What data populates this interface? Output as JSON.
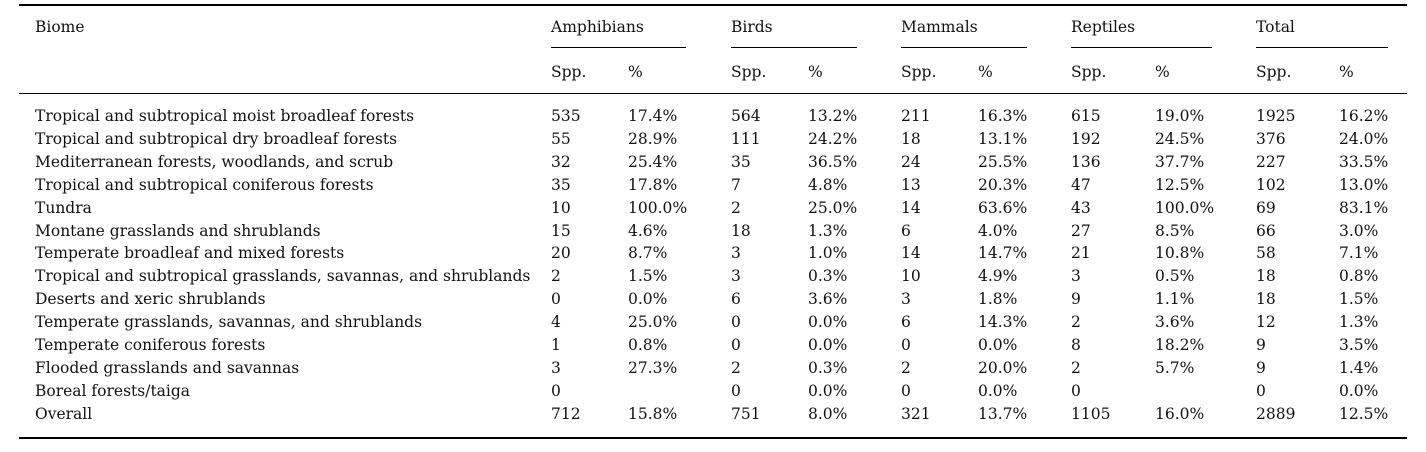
{
  "headers": {
    "biome": "Biome",
    "groups": [
      "Amphibians",
      "Birds",
      "Mammals",
      "Reptiles",
      "Total"
    ],
    "sub_spp": "Spp.",
    "sub_pct": "%"
  },
  "rows": [
    {
      "biome": "Tropical and subtropical moist broadleaf forests",
      "vals": [
        "535",
        "17.4%",
        "564",
        "13.2%",
        "211",
        "16.3%",
        "615",
        "19.0%",
        "1925",
        "16.2%"
      ]
    },
    {
      "biome": "Tropical and subtropical dry broadleaf forests",
      "vals": [
        "55",
        "28.9%",
        "111",
        "24.2%",
        "18",
        "13.1%",
        "192",
        "24.5%",
        "376",
        "24.0%"
      ]
    },
    {
      "biome": "Mediterranean forests, woodlands, and scrub",
      "vals": [
        "32",
        "25.4%",
        "35",
        "36.5%",
        "24",
        "25.5%",
        "136",
        "37.7%",
        "227",
        "33.5%"
      ]
    },
    {
      "biome": "Tropical and subtropical coniferous forests",
      "vals": [
        "35",
        "17.8%",
        "7",
        "4.8%",
        "13",
        "20.3%",
        "47",
        "12.5%",
        "102",
        "13.0%"
      ]
    },
    {
      "biome": "Tundra",
      "vals": [
        "10",
        "100.0%",
        "2",
        "25.0%",
        "14",
        "63.6%",
        "43",
        "100.0%",
        "69",
        "83.1%"
      ]
    },
    {
      "biome": "Montane grasslands and shrublands",
      "vals": [
        "15",
        "4.6%",
        "18",
        "1.3%",
        "6",
        "4.0%",
        "27",
        "8.5%",
        "66",
        "3.0%"
      ]
    },
    {
      "biome": "Temperate broadleaf and mixed forests",
      "vals": [
        "20",
        "8.7%",
        "3",
        "1.0%",
        "14",
        "14.7%",
        "21",
        "10.8%",
        "58",
        "7.1%"
      ]
    },
    {
      "biome": "Tropical and subtropical grasslands, savannas, and shrublands",
      "vals": [
        "2",
        "1.5%",
        "3",
        "0.3%",
        "10",
        "4.9%",
        "3",
        "0.5%",
        "18",
        "0.8%"
      ]
    },
    {
      "biome": "Deserts and xeric shrublands",
      "vals": [
        "0",
        "0.0%",
        "6",
        "3.6%",
        "3",
        "1.8%",
        "9",
        "1.1%",
        "18",
        "1.5%"
      ]
    },
    {
      "biome": "Temperate grasslands, savannas, and shrublands",
      "vals": [
        "4",
        "25.0%",
        "0",
        "0.0%",
        "6",
        "14.3%",
        "2",
        "3.6%",
        "12",
        "1.3%"
      ]
    },
    {
      "biome": "Temperate coniferous forests",
      "vals": [
        "1",
        "0.8%",
        "0",
        "0.0%",
        "0",
        "0.0%",
        "8",
        "18.2%",
        "9",
        "3.5%"
      ]
    },
    {
      "biome": "Flooded grasslands and savannas",
      "vals": [
        "3",
        "27.3%",
        "2",
        "0.3%",
        "2",
        "20.0%",
        "2",
        "5.7%",
        "9",
        "1.4%"
      ]
    },
    {
      "biome": "Boreal forests/taiga",
      "vals": [
        "0",
        "",
        "0",
        "0.0%",
        "0",
        "0.0%",
        "0",
        "",
        "0",
        "0.0%"
      ]
    },
    {
      "biome": "Overall",
      "vals": [
        "712",
        "15.8%",
        "751",
        "8.0%",
        "321",
        "13.7%",
        "1105",
        "16.0%",
        "2889",
        "12.5%"
      ]
    }
  ]
}
